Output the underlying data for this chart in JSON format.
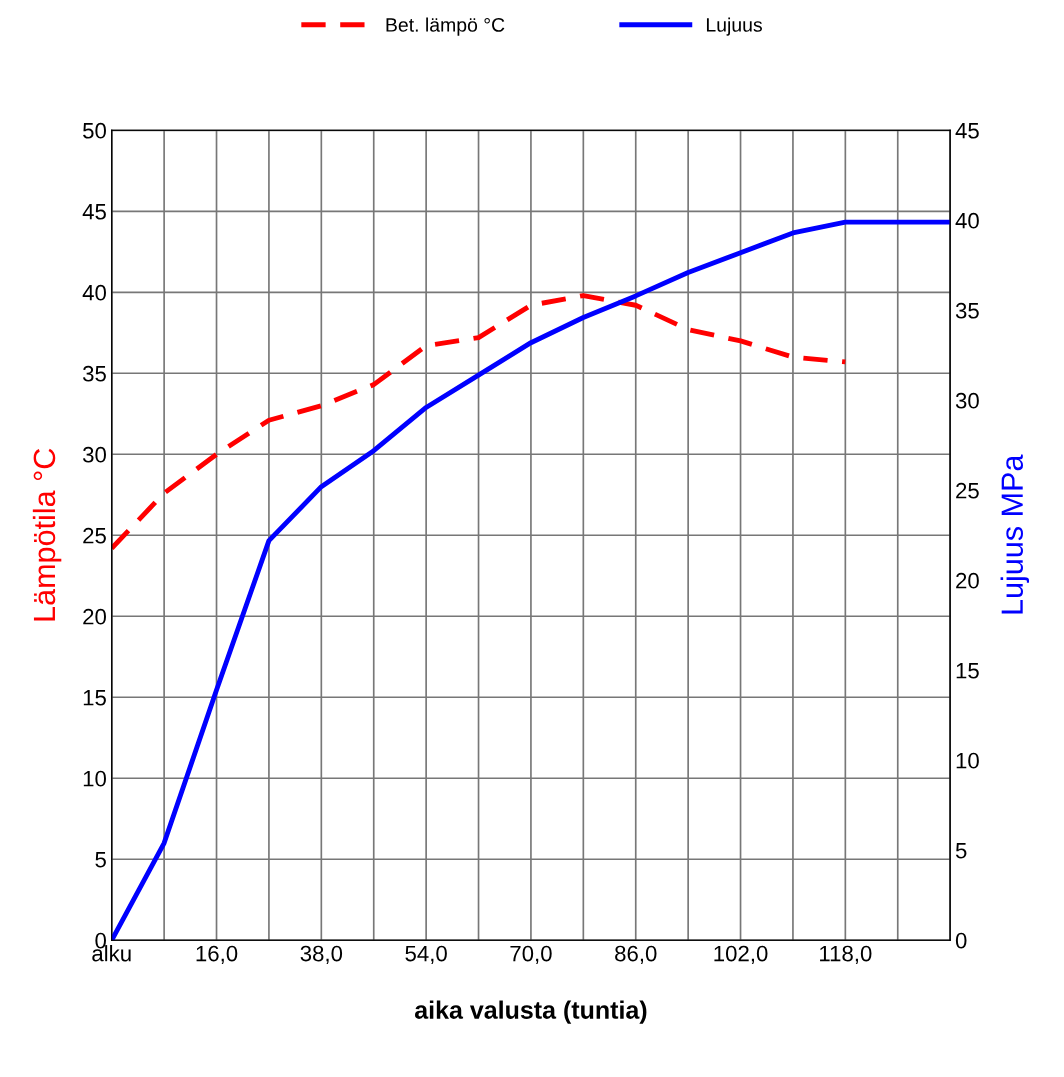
{
  "chart_data": {
    "type": "line",
    "xlabel": "aika valusta (tuntia)",
    "ylabel": "Lämpötila °C",
    "y2label": "Lujuus MPa",
    "categories": [
      "alku",
      null,
      "16,0",
      null,
      "38,0",
      null,
      "54,0",
      null,
      "70,0",
      null,
      "86,0",
      null,
      "102,0",
      null,
      "118,0",
      null,
      null
    ],
    "series": [
      {
        "name": "Bet. lämpö °C",
        "color": "#ff0000",
        "line_style": "dashed",
        "values": [
          24.2,
          27.6,
          30,
          32.1,
          33,
          34.3,
          36.7,
          37.2,
          39.2,
          39.8,
          39.2,
          37.7,
          37,
          36,
          35.7,
          null,
          null
        ]
      },
      {
        "name": "Lujuus",
        "color": "#0000ff",
        "line_style": "solid",
        "axis": "y2",
        "values": [
          0,
          5.4,
          13.9,
          22.2,
          25.2,
          27.2,
          29.6,
          31.4,
          33.2,
          34.6,
          35.8,
          37.1,
          38.2,
          39.3,
          39.9,
          39.9,
          39.9
        ]
      }
    ],
    "ylim": [
      0,
      50
    ],
    "yticks": [
      0,
      5,
      10,
      15,
      20,
      25,
      30,
      35,
      40,
      45,
      50
    ],
    "y2lim": [
      0,
      45
    ],
    "y2ticks": [
      0,
      5,
      10,
      15,
      20,
      25,
      30,
      35,
      40,
      45
    ],
    "grid": true,
    "legend": "top",
    "marker": "none"
  }
}
